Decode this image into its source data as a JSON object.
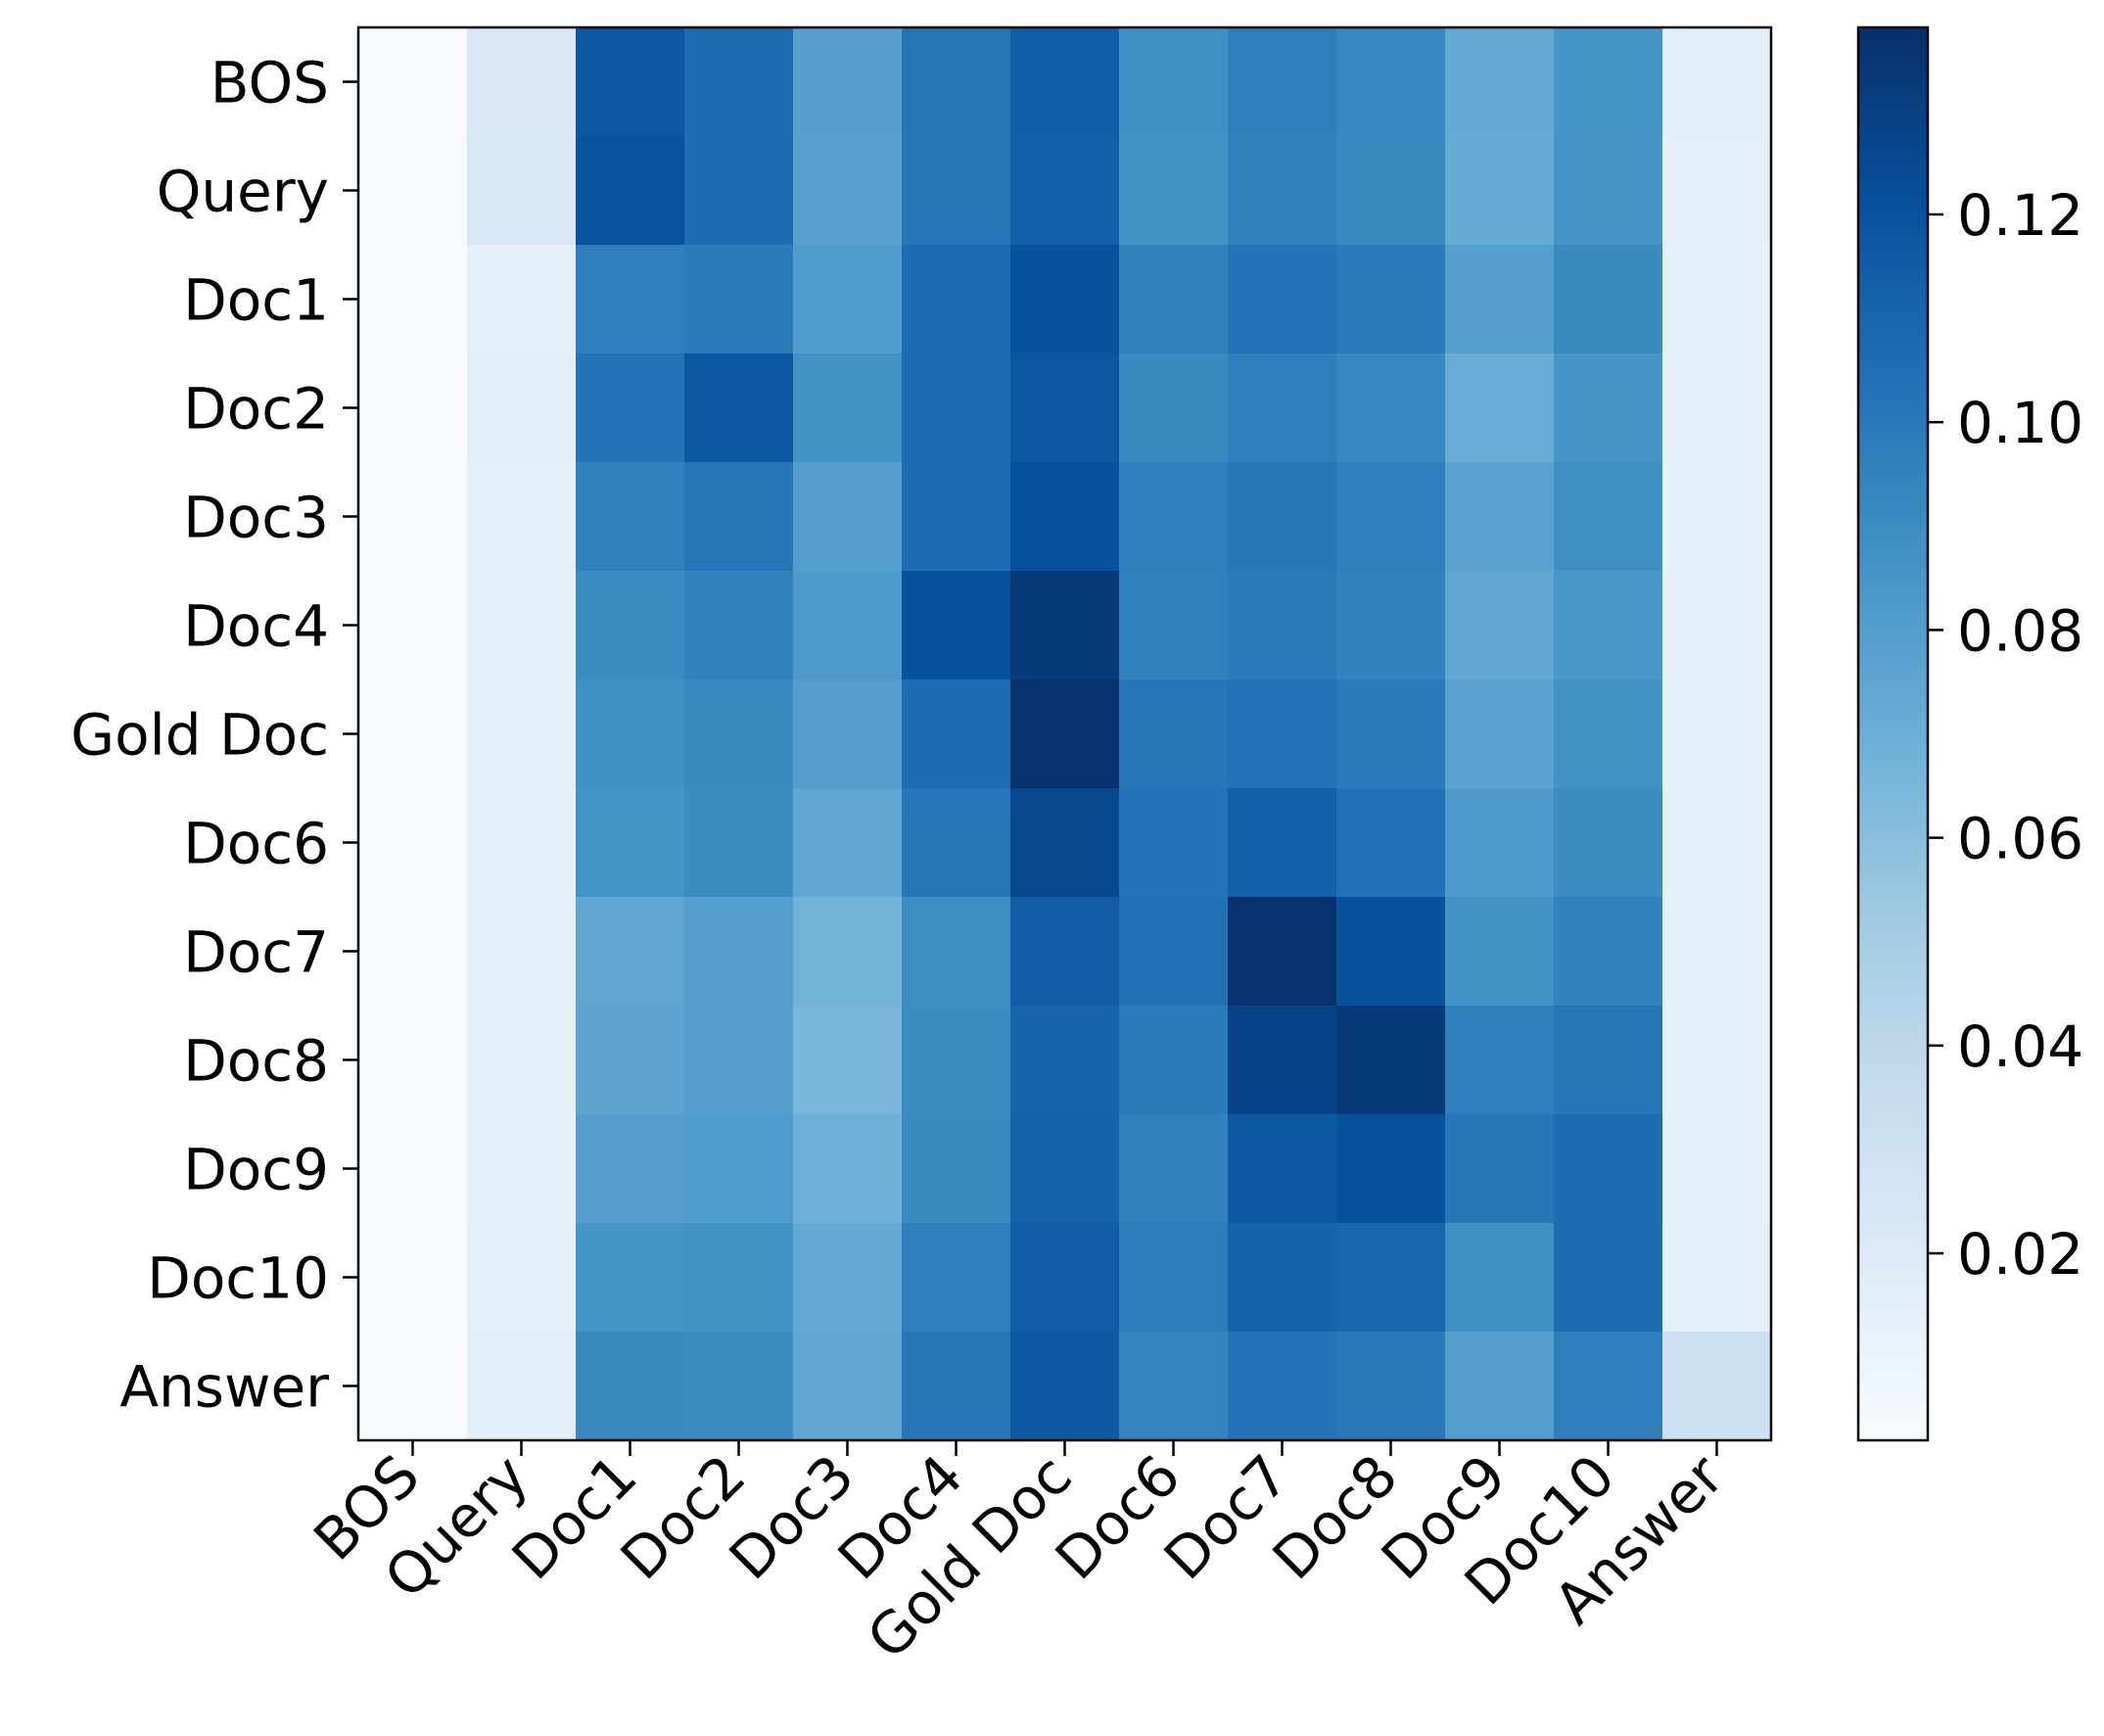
{
  "chart_data": {
    "type": "heatmap",
    "title": "",
    "xlabel": "",
    "ylabel": "",
    "x_labels": [
      "BOS",
      "Query",
      "Doc1",
      "Doc2",
      "Doc3",
      "Doc4",
      "Gold Doc",
      "Doc6",
      "Doc7",
      "Doc8",
      "Doc9",
      "Doc10",
      "Answer"
    ],
    "y_labels": [
      "BOS",
      "Query",
      "Doc1",
      "Doc2",
      "Doc3",
      "Doc4",
      "Gold Doc",
      "Doc6",
      "Doc7",
      "Doc8",
      "Doc9",
      "Doc10",
      "Answer"
    ],
    "values": [
      [
        0.003,
        0.022,
        0.118,
        0.107,
        0.079,
        0.102,
        0.114,
        0.088,
        0.097,
        0.092,
        0.073,
        0.086,
        0.016
      ],
      [
        0.003,
        0.023,
        0.12,
        0.106,
        0.078,
        0.101,
        0.113,
        0.087,
        0.096,
        0.091,
        0.072,
        0.085,
        0.015
      ],
      [
        0.002,
        0.015,
        0.097,
        0.099,
        0.081,
        0.106,
        0.121,
        0.096,
        0.103,
        0.099,
        0.079,
        0.091,
        0.014
      ],
      [
        0.002,
        0.016,
        0.103,
        0.118,
        0.087,
        0.107,
        0.118,
        0.091,
        0.097,
        0.092,
        0.071,
        0.085,
        0.013
      ],
      [
        0.003,
        0.015,
        0.096,
        0.101,
        0.08,
        0.106,
        0.121,
        0.097,
        0.101,
        0.097,
        0.077,
        0.088,
        0.014
      ],
      [
        0.003,
        0.014,
        0.09,
        0.095,
        0.082,
        0.121,
        0.133,
        0.096,
        0.099,
        0.095,
        0.074,
        0.084,
        0.014
      ],
      [
        0.003,
        0.015,
        0.088,
        0.091,
        0.08,
        0.106,
        0.137,
        0.101,
        0.103,
        0.099,
        0.077,
        0.087,
        0.014
      ],
      [
        0.002,
        0.014,
        0.086,
        0.09,
        0.075,
        0.101,
        0.126,
        0.103,
        0.113,
        0.104,
        0.082,
        0.09,
        0.013
      ],
      [
        0.002,
        0.014,
        0.075,
        0.08,
        0.067,
        0.089,
        0.115,
        0.104,
        0.137,
        0.121,
        0.087,
        0.095,
        0.013
      ],
      [
        0.002,
        0.014,
        0.076,
        0.079,
        0.065,
        0.09,
        0.111,
        0.099,
        0.128,
        0.133,
        0.097,
        0.101,
        0.013
      ],
      [
        0.002,
        0.014,
        0.079,
        0.081,
        0.069,
        0.091,
        0.112,
        0.096,
        0.117,
        0.121,
        0.101,
        0.107,
        0.014
      ],
      [
        0.002,
        0.015,
        0.086,
        0.087,
        0.073,
        0.097,
        0.115,
        0.098,
        0.112,
        0.11,
        0.088,
        0.106,
        0.015
      ],
      [
        0.003,
        0.016,
        0.091,
        0.09,
        0.074,
        0.101,
        0.117,
        0.094,
        0.103,
        0.1,
        0.08,
        0.097,
        0.03
      ]
    ],
    "colormap": "Blues",
    "colorbar": {
      "min": 0.002,
      "max": 0.138,
      "ticks": [
        0.02,
        0.04,
        0.06,
        0.08,
        0.1,
        0.12
      ],
      "tick_labels": [
        "0.02",
        "0.04",
        "0.06",
        "0.08",
        "0.10",
        "0.12"
      ]
    },
    "grid": false,
    "legend": "none"
  }
}
